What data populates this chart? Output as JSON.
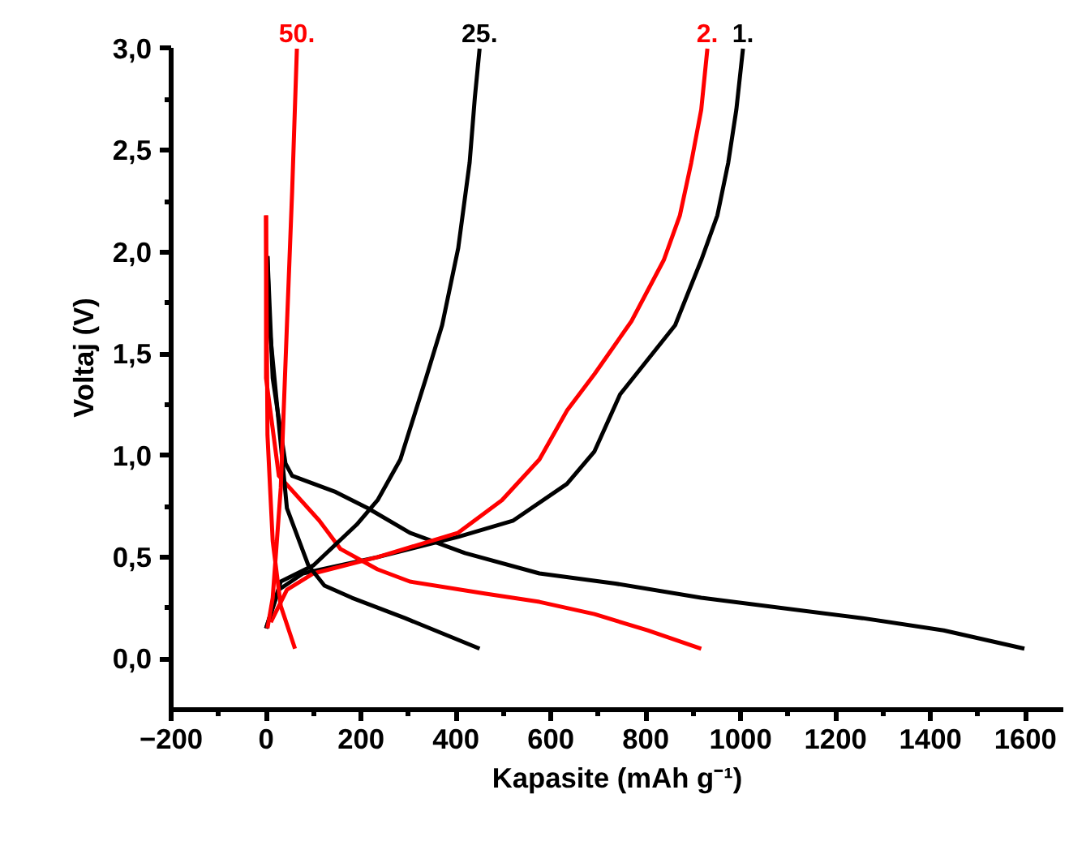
{
  "chart_data": {
    "type": "line",
    "xlabel": "Kapasite (mAh g⁻¹)",
    "ylabel": "Voltaj (V)",
    "xlim": [
      -200,
      1680
    ],
    "ylim": [
      -0.25,
      3.0
    ],
    "xticks": [
      -200,
      {
        "value": -100,
        "label": null
      },
      0,
      {
        "value": 100,
        "label": null
      },
      200,
      {
        "value": 300,
        "label": null
      },
      400,
      {
        "value": 500,
        "label": null
      },
      600,
      {
        "value": 700,
        "label": null
      },
      800,
      {
        "value": 900,
        "label": null
      },
      1000,
      {
        "value": 1100,
        "label": null
      },
      1200,
      {
        "value": 1300,
        "label": null
      },
      1400,
      {
        "value": 1500,
        "label": null
      },
      1600
    ],
    "yticks": [
      {
        "value": 0,
        "label": "0,0"
      },
      {
        "value": 0.25,
        "label": null
      },
      {
        "value": 0.5,
        "label": "0,5"
      },
      {
        "value": 0.75,
        "label": null
      },
      {
        "value": 1.0,
        "label": "1,0"
      },
      {
        "value": 1.25,
        "label": null
      },
      {
        "value": 1.5,
        "label": "1,5"
      },
      {
        "value": 1.75,
        "label": null
      },
      {
        "value": 2.0,
        "label": "2,0"
      },
      {
        "value": 2.25,
        "label": null
      },
      {
        "value": 2.5,
        "label": "2,5"
      },
      {
        "value": 2.75,
        "label": null
      },
      {
        "value": 3.0,
        "label": "3,0"
      }
    ],
    "grid": false,
    "marker": "none",
    "line_style": "solid",
    "series": [
      {
        "color": "#000000",
        "x": [
          3,
          14,
          41,
          55,
          147,
          215,
          303,
          419,
          576,
          736,
          917,
          1257,
          1428,
          1598
        ],
        "values": [
          1.98,
          1.38,
          0.96,
          0.9,
          0.82,
          0.74,
          0.62,
          0.52,
          0.42,
          0.37,
          0.3,
          0.2,
          0.14,
          0.05
        ]
      },
      {
        "name": "1.",
        "color": "#000000",
        "x": [
          0,
          27,
          78,
          235,
          405,
          463,
          521,
          634,
          692,
          746,
          862,
          917,
          951,
          974,
          991,
          1005
        ],
        "values": [
          0.15,
          0.34,
          0.42,
          0.5,
          0.6,
          0.64,
          0.68,
          0.86,
          1.02,
          1.3,
          1.64,
          1.96,
          2.18,
          2.44,
          2.7,
          3.0
        ]
      },
      {
        "color": "#ff0000",
        "x": [
          0,
          0,
          27,
          112,
          157,
          235,
          303,
          463,
          576,
          692,
          804,
          917
        ],
        "values": [
          2.18,
          1.38,
          0.9,
          0.68,
          0.54,
          0.44,
          0.38,
          0.32,
          0.28,
          0.22,
          0.14,
          0.05
        ]
      },
      {
        "name": "2.",
        "color": "#ff0000",
        "x": [
          10,
          44,
          100,
          235,
          405,
          497,
          576,
          634,
          692,
          770,
          838,
          872,
          896,
          917,
          930
        ],
        "values": [
          0.18,
          0.34,
          0.42,
          0.5,
          0.62,
          0.78,
          0.98,
          1.22,
          1.4,
          1.66,
          1.96,
          2.18,
          2.44,
          2.7,
          3.0
        ]
      },
      {
        "color": "#000000",
        "x": [
          3,
          7,
          44,
          89,
          123,
          181,
          293,
          450
        ],
        "values": [
          1.98,
          1.64,
          0.74,
          0.46,
          0.36,
          0.3,
          0.2,
          0.05
        ]
      },
      {
        "name": "25.",
        "color": "#000000",
        "x": [
          0,
          31,
          100,
          191,
          235,
          283,
          337,
          371,
          405,
          429,
          440,
          450
        ],
        "values": [
          0.15,
          0.38,
          0.46,
          0.66,
          0.78,
          0.98,
          1.38,
          1.64,
          2.02,
          2.44,
          2.76,
          3.0
        ]
      },
      {
        "color": "#ff0000",
        "x": [
          0,
          3,
          14,
          31,
          61
        ],
        "values": [
          2.18,
          1.1,
          0.58,
          0.26,
          0.05
        ]
      },
      {
        "name": "50.",
        "color": "#ff0000",
        "x": [
          3,
          14,
          31,
          44,
          55,
          65
        ],
        "values": [
          0.15,
          0.3,
          0.84,
          1.64,
          2.3,
          3.0
        ]
      }
    ]
  }
}
